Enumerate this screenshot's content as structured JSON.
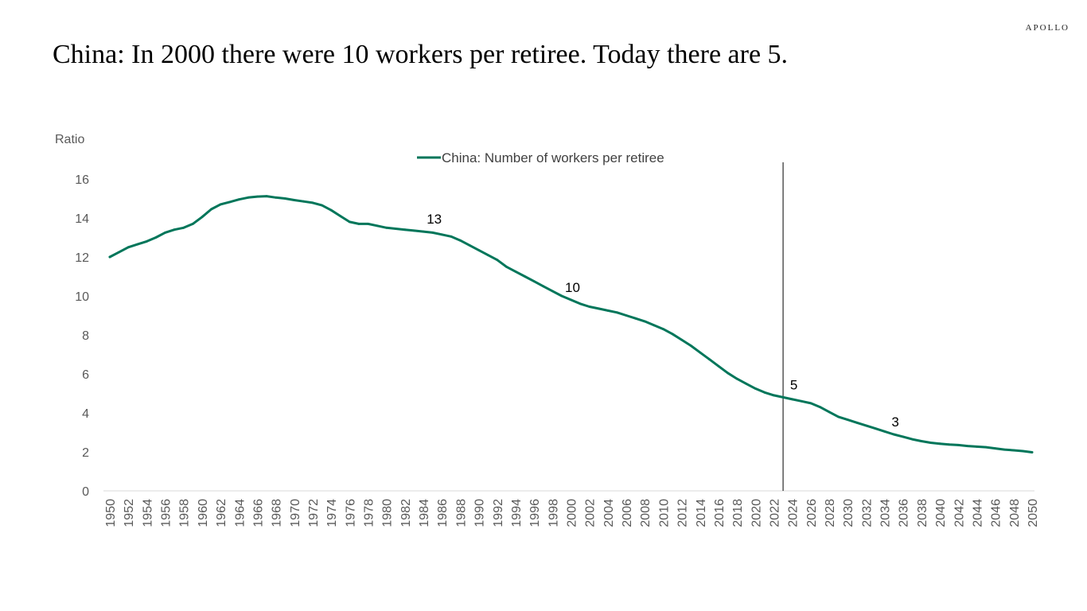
{
  "brand": "APOLLO",
  "title": "China: In 2000 there were 10 workers per retiree. Today there are 5.",
  "chart_data": {
    "type": "line",
    "title": "",
    "ylabel": "Ratio",
    "xlabel": "",
    "ylim": [
      0,
      16
    ],
    "xlim": [
      1950,
      2050
    ],
    "yticks": [
      0,
      2,
      4,
      6,
      8,
      10,
      12,
      14,
      16
    ],
    "xticks": [
      1950,
      1952,
      1954,
      1956,
      1958,
      1960,
      1962,
      1964,
      1966,
      1968,
      1970,
      1972,
      1974,
      1976,
      1978,
      1980,
      1982,
      1984,
      1986,
      1988,
      1990,
      1992,
      1994,
      1996,
      1998,
      2000,
      2002,
      2004,
      2006,
      2008,
      2010,
      2012,
      2014,
      2016,
      2018,
      2020,
      2022,
      2024,
      2026,
      2028,
      2030,
      2032,
      2034,
      2036,
      2038,
      2040,
      2042,
      2044,
      2046,
      2048,
      2050
    ],
    "grid": false,
    "legend_position": "top-center",
    "colors": {
      "series": "#00765A",
      "vline": "#000000"
    },
    "vline_x": 2023,
    "series": [
      {
        "name": "China: Number of workers per retiree",
        "x": [
          1950,
          1951,
          1952,
          1953,
          1954,
          1955,
          1956,
          1957,
          1958,
          1959,
          1960,
          1961,
          1962,
          1963,
          1964,
          1965,
          1966,
          1967,
          1968,
          1969,
          1970,
          1971,
          1972,
          1973,
          1974,
          1975,
          1976,
          1977,
          1978,
          1979,
          1980,
          1981,
          1982,
          1983,
          1984,
          1985,
          1986,
          1987,
          1988,
          1989,
          1990,
          1991,
          1992,
          1993,
          1994,
          1995,
          1996,
          1997,
          1998,
          1999,
          2000,
          2001,
          2002,
          2003,
          2004,
          2005,
          2006,
          2007,
          2008,
          2009,
          2010,
          2011,
          2012,
          2013,
          2014,
          2015,
          2016,
          2017,
          2018,
          2019,
          2020,
          2021,
          2022,
          2023,
          2024,
          2025,
          2026,
          2027,
          2028,
          2029,
          2030,
          2031,
          2032,
          2033,
          2034,
          2035,
          2036,
          2037,
          2038,
          2039,
          2040,
          2041,
          2042,
          2043,
          2044,
          2045,
          2046,
          2047,
          2048,
          2049,
          2050
        ],
        "values": [
          12.0,
          12.25,
          12.5,
          12.65,
          12.8,
          13.0,
          13.25,
          13.4,
          13.5,
          13.7,
          14.05,
          14.45,
          14.7,
          14.82,
          14.95,
          15.05,
          15.1,
          15.12,
          15.05,
          15.0,
          14.92,
          14.85,
          14.78,
          14.65,
          14.4,
          14.1,
          13.8,
          13.7,
          13.7,
          13.6,
          13.5,
          13.45,
          13.4,
          13.35,
          13.3,
          13.25,
          13.15,
          13.05,
          12.85,
          12.6,
          12.35,
          12.1,
          11.85,
          11.5,
          11.25,
          11.0,
          10.75,
          10.5,
          10.25,
          10.0,
          9.8,
          9.6,
          9.45,
          9.35,
          9.25,
          9.15,
          9.0,
          8.85,
          8.7,
          8.5,
          8.3,
          8.05,
          7.75,
          7.45,
          7.1,
          6.75,
          6.4,
          6.05,
          5.75,
          5.5,
          5.25,
          5.05,
          4.9,
          4.8,
          4.7,
          4.6,
          4.5,
          4.3,
          4.05,
          3.8,
          3.65,
          3.5,
          3.35,
          3.2,
          3.05,
          2.9,
          2.78,
          2.65,
          2.55,
          2.47,
          2.42,
          2.38,
          2.35,
          2.3,
          2.27,
          2.24,
          2.18,
          2.12,
          2.08,
          2.04,
          1.98
        ]
      }
    ],
    "annotations": [
      {
        "x": 1985,
        "y": 13.3,
        "text": "13"
      },
      {
        "x": 2000,
        "y": 9.8,
        "text": "10"
      },
      {
        "x": 2024,
        "y": 4.8,
        "text": "5"
      },
      {
        "x": 2035,
        "y": 2.9,
        "text": "3"
      }
    ]
  }
}
